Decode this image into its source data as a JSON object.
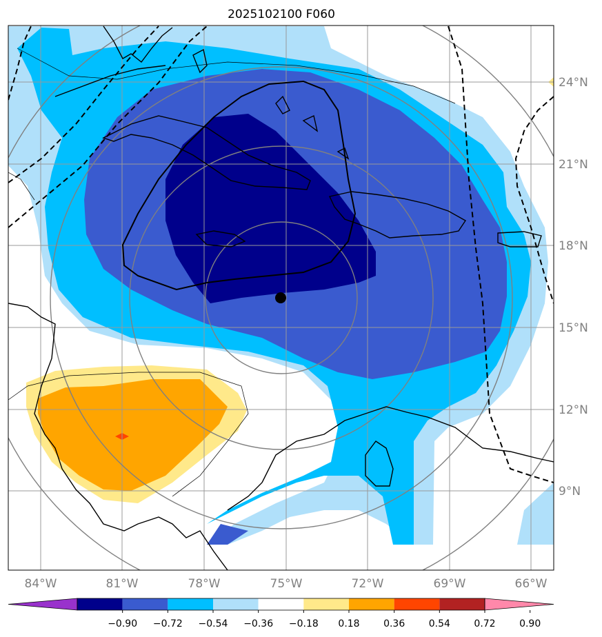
{
  "title": "2025102100 F060",
  "map": {
    "lon_labels": [
      "84°W",
      "81°W",
      "78°W",
      "75°W",
      "72°W",
      "69°W",
      "66°W"
    ],
    "lat_labels": [
      "24°N",
      "21°N",
      "18°N",
      "15°N",
      "12°N",
      "9°N"
    ],
    "center_marker": {
      "lon": -75.0,
      "lat": 16.1
    }
  },
  "colorbar": {
    "levels": [
      "−0.90",
      "−0.72",
      "−0.54",
      "−0.36",
      "−0.18",
      "0.18",
      "0.36",
      "0.54",
      "0.72",
      "0.90"
    ],
    "colors": [
      "#9932cc",
      "#00008b",
      "#3a5bcf",
      "#00bfff",
      "#b0e0fa",
      "#ffffff",
      "#ffe98a",
      "#ffa500",
      "#ff4500",
      "#b22222",
      "#ff88aa"
    ]
  },
  "colors": {
    "dark_blue": "#00008b",
    "medium_blue": "#3a5bcf",
    "sky_blue": "#00bfff",
    "light_blue": "#b0e0fa",
    "light_yellow": "#ffe98a",
    "orange": "#ffa500",
    "red": "#ff4500",
    "grid": "#999999",
    "range_rings": "#808080"
  }
}
